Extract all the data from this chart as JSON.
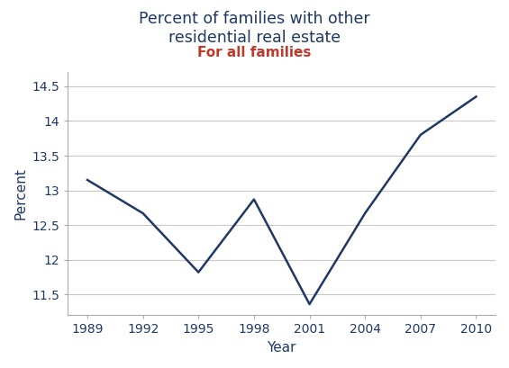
{
  "title": "Percent of families with other\nresidential real estate",
  "subtitle": "For all families",
  "xlabel": "Year",
  "ylabel": "Percent",
  "years": [
    1989,
    1992,
    1995,
    1998,
    2001,
    2004,
    2007,
    2010
  ],
  "values": [
    13.15,
    12.67,
    11.82,
    12.87,
    11.36,
    12.67,
    13.8,
    14.35
  ],
  "line_color": "#1f3864",
  "title_color": "#1f3864",
  "subtitle_color": "#c0392b",
  "tick_label_color": "#1f3864",
  "axis_label_color": "#1f3864",
  "background_color": "#ffffff",
  "ylim": [
    11.2,
    14.7
  ],
  "ytick_values": [
    11.5,
    12.0,
    12.5,
    13.0,
    13.5,
    14.0,
    14.5
  ],
  "ytick_labels": [
    "11.5",
    "12",
    "12.5",
    "13",
    "13.5",
    "14",
    "14.5"
  ],
  "xticks": [
    1989,
    1992,
    1995,
    1998,
    2001,
    2004,
    2007,
    2010
  ],
  "grid_color": "#c8c8c8",
  "spine_color": "#aaaaaa",
  "title_fontsize": 12.5,
  "subtitle_fontsize": 11,
  "label_fontsize": 11,
  "tick_fontsize": 10,
  "line_width": 1.8
}
